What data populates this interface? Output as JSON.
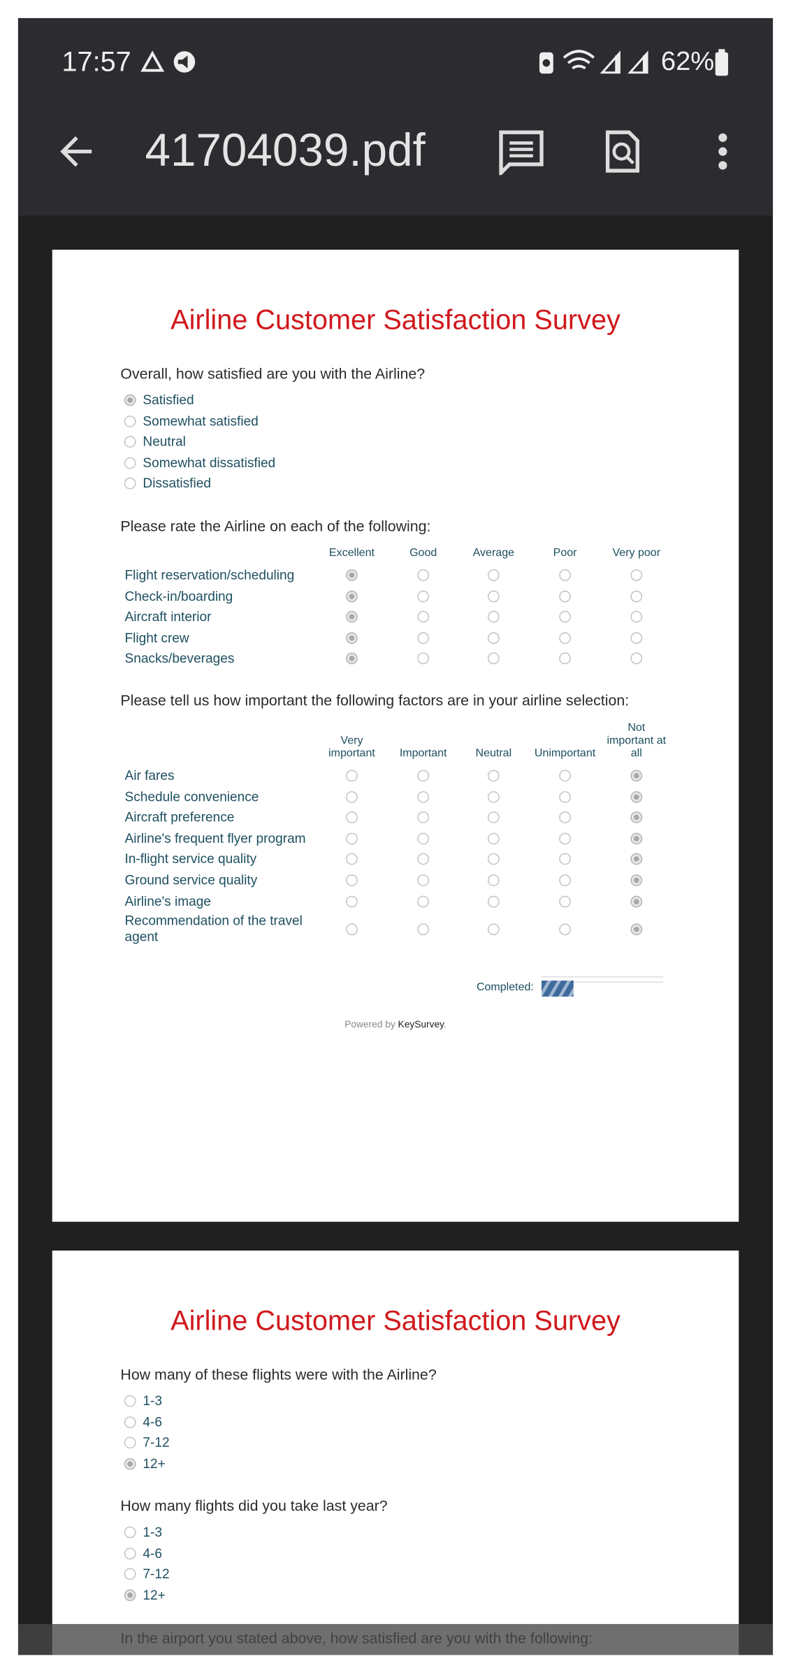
{
  "status_bar": {
    "time": "17:57",
    "battery": "62%"
  },
  "app_bar": {
    "title": "41704039.pdf"
  },
  "pages": [
    {
      "title": "Airline Customer Satisfaction Survey",
      "questions": [
        {
          "text": "Overall, how satisfied are you with the Airline?",
          "options": [
            "Satisfied",
            "Somewhat satisfied",
            "Neutral",
            "Somewhat dissatisfied",
            "Dissatisfied"
          ],
          "selected": 0
        },
        {
          "text": "Please rate the Airline on each of the following:",
          "columns": [
            "Excellent",
            "Good",
            "Average",
            "Poor",
            "Very poor"
          ],
          "rows": [
            "Flight reservation/scheduling",
            "Check-in/boarding",
            "Aircraft interior",
            "Flight crew",
            "Snacks/beverages"
          ],
          "selected": 0
        },
        {
          "text": "Please tell us how important the following factors are in your airline selection:",
          "columns": [
            "Very important",
            "Important",
            "Neutral",
            "Unimportant",
            "Not important at all"
          ],
          "rows": [
            "Air fares",
            "Schedule convenience",
            "Aircraft preference",
            "Airline's frequent flyer program",
            "In-flight service quality",
            "Ground service quality",
            "Airline's image",
            "Recommendation of the travel agent"
          ],
          "selected": 4
        }
      ],
      "progress": {
        "label": "Completed:"
      },
      "footer": {
        "prefix": "Powered by",
        "brand": "KeySurvey",
        "suffix": "."
      }
    },
    {
      "title": "Airline Customer Satisfaction Survey",
      "questions": [
        {
          "text": "How many of these flights were with the Airline?",
          "options": [
            "1-3",
            "4-6",
            "7-12",
            "12+"
          ],
          "selected": 3
        },
        {
          "text": "How many flights did you take last year?",
          "options": [
            "1-3",
            "4-6",
            "7-12",
            "12+"
          ],
          "selected": 3
        },
        {
          "text": "In the airport you stated above, how satisfied are you with the following:"
        }
      ]
    }
  ]
}
